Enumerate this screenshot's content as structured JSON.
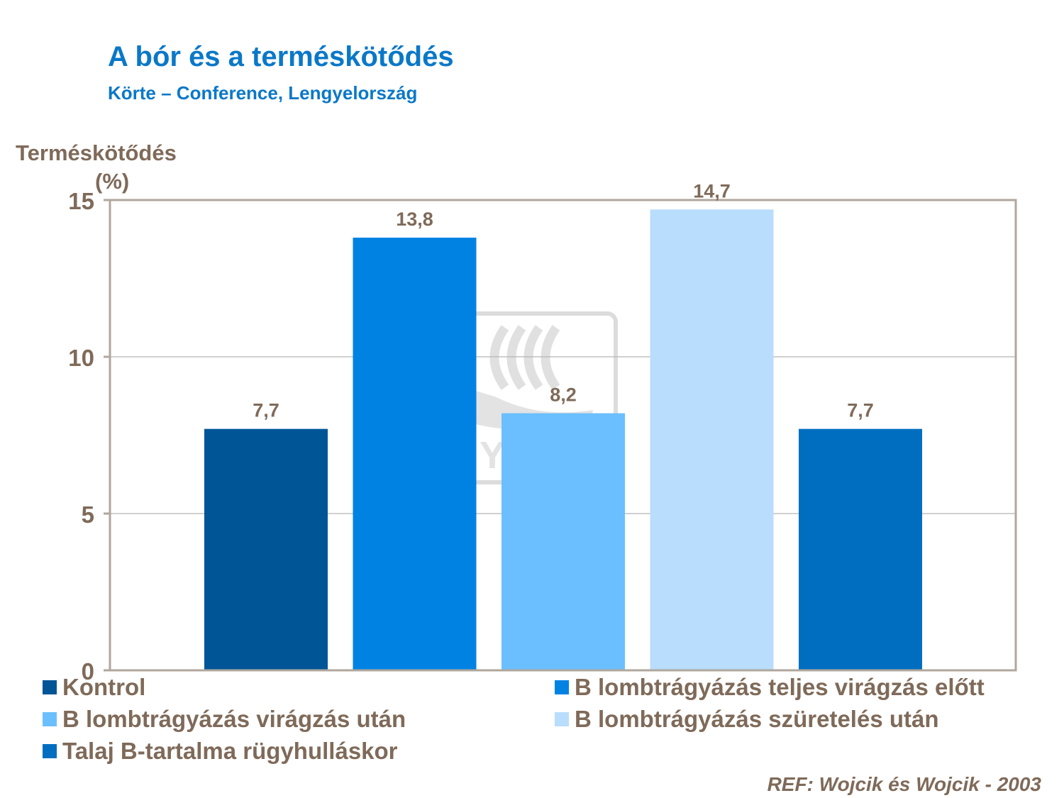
{
  "header": {
    "title": "A bór és a terméskötődés",
    "subtitle": "Körte – Conference, Lengyelország"
  },
  "chart_data": {
    "type": "bar",
    "ylabel_line1": "Terméskötődés",
    "ylabel_line2": "(%)",
    "ylim": [
      0,
      15
    ],
    "yticks": [
      0,
      5,
      10,
      15
    ],
    "ytick_labels": [
      "0",
      "5",
      "10",
      "15"
    ],
    "grid": true,
    "legend_position": "bottom",
    "series": [
      {
        "name": "Kontrol",
        "value": 7.7,
        "label": "7,7",
        "color": "#005597"
      },
      {
        "name": "B lombtrágyázás teljes virágzás előtt",
        "value": 13.8,
        "label": "13,8",
        "color": "#0082e3"
      },
      {
        "name": "B lombtrágyázás virágzás után",
        "value": 8.2,
        "label": "8,2",
        "color": "#6bbfff"
      },
      {
        "name": "B lombtrágyázás szüretelés után",
        "value": 14.7,
        "label": "14,7",
        "color": "#b9ddfc"
      },
      {
        "name": "Talaj B-tartalma rügyhulláskor",
        "value": 7.7,
        "label": "7,7",
        "color": "#006ec0"
      }
    ]
  },
  "watermark": {
    "text": "YARA"
  },
  "footer": {
    "reference": "REF: Wojcik és Wojcik - 2003"
  }
}
